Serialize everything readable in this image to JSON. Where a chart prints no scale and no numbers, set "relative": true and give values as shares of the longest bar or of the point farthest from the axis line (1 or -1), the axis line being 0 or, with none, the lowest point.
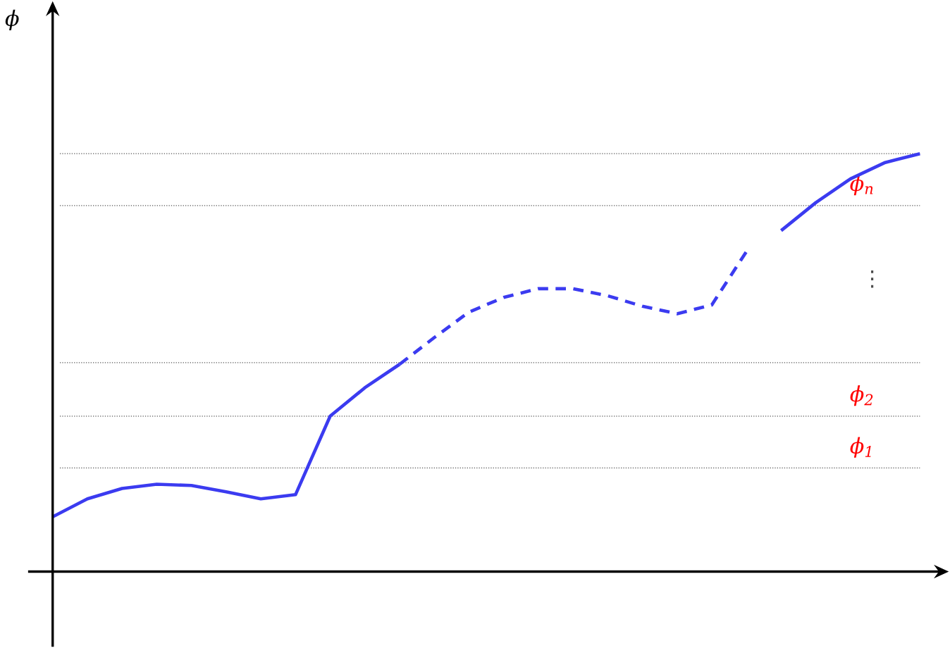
{
  "chart_data": {
    "type": "line",
    "relative": true,
    "categories": [
      null,
      null,
      null,
      null,
      null,
      null,
      null,
      null,
      null,
      null,
      null,
      null,
      null,
      null,
      null,
      null,
      null,
      null,
      null,
      null,
      null,
      null,
      null,
      null,
      null,
      null
    ],
    "series": [
      {
        "color": "#3b3bf0",
        "line_style": "solid",
        "values": [
          0.131,
          0.174,
          0.199,
          0.209,
          0.206,
          0.191,
          0.174,
          0.184,
          0.372,
          0.44,
          0.496,
          null,
          null,
          null,
          null,
          null,
          null,
          null,
          null,
          null,
          null,
          null,
          null,
          null,
          null,
          null
        ]
      },
      {
        "color": "#3b3bf0",
        "line_style": "dashed",
        "values": [
          null,
          null,
          null,
          null,
          null,
          null,
          null,
          null,
          null,
          null,
          0.496,
          0.56,
          0.621,
          0.656,
          0.677,
          0.677,
          0.66,
          0.635,
          0.617,
          0.638,
          0.766,
          null,
          null,
          null,
          null,
          null
        ]
      },
      {
        "color": "#3b3bf0",
        "line_style": "solid",
        "values": [
          null,
          null,
          null,
          null,
          null,
          null,
          null,
          null,
          null,
          null,
          null,
          null,
          null,
          null,
          null,
          null,
          null,
          null,
          null,
          null,
          null,
          0.816,
          0.883,
          0.94,
          0.979,
          1.0
        ]
      }
    ],
    "ref_lines": [
      {
        "axis": "y",
        "value": 0.248,
        "label": "ϕ$_{1}$",
        "color": "#555555",
        "line_style": "dotted"
      },
      {
        "axis": "y",
        "value": 0.372,
        "label": "ϕ$_{2}$",
        "color": "#555555",
        "line_style": "dotted"
      },
      {
        "axis": "y",
        "value": 0.5,
        "color": "#555555",
        "line_style": "dotted"
      },
      {
        "axis": "y",
        "value": 0.876,
        "label": "ϕ$_{n}$",
        "color": "#555555",
        "line_style": "dotted"
      },
      {
        "axis": "y",
        "value": 1.0,
        "color": "#555555",
        "line_style": "dotted"
      }
    ],
    "annotations": [
      "ϕ",
      "⋮"
    ]
  }
}
